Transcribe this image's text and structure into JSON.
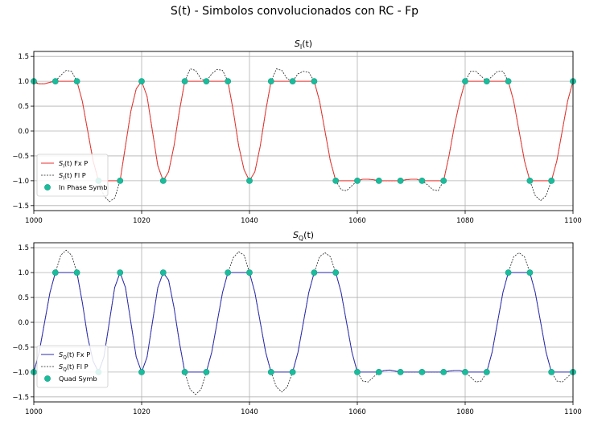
{
  "suptitle": "S(t) - Simbolos convolucionados con RC - Fp",
  "chart_data": [
    {
      "type": "line",
      "title": "S_I(t)",
      "title_main": "S",
      "title_sub": "I",
      "title_tail": "(t)",
      "xlim": [
        1000,
        1100
      ],
      "ylim": [
        -1.6,
        1.6
      ],
      "xticks": [
        1000,
        1020,
        1040,
        1060,
        1080,
        1100
      ],
      "yticks": [
        -1.5,
        -1.0,
        -0.5,
        0.0,
        0.5,
        1.0,
        1.5
      ],
      "ytick_labels": [
        "−1.5",
        "−1.0",
        "−0.5",
        "0.0",
        "0.5",
        "1.0",
        "1.5"
      ],
      "grid": true,
      "legend_position": "lower-left",
      "symbol_period": 4,
      "series": [
        {
          "name": "S_I(t) Fx P",
          "legend_main": "S",
          "legend_sub": "I",
          "legend_tail": "(t) Fx P",
          "color": "#e8322c",
          "style": "solid",
          "x": [
            1000,
            1001,
            1002,
            1003,
            1004,
            1005,
            1006,
            1007,
            1008,
            1009,
            1010,
            1011,
            1012,
            1013,
            1014,
            1015,
            1016,
            1017,
            1018,
            1019,
            1020,
            1021,
            1022,
            1023,
            1024,
            1025,
            1026,
            1027,
            1028,
            1029,
            1030,
            1031,
            1032,
            1033,
            1034,
            1035,
            1036,
            1037,
            1038,
            1039,
            1040,
            1041,
            1042,
            1043,
            1044,
            1045,
            1046,
            1047,
            1048,
            1049,
            1050,
            1051,
            1052,
            1053,
            1054,
            1055,
            1056,
            1057,
            1058,
            1059,
            1060,
            1061,
            1062,
            1063,
            1064,
            1065,
            1066,
            1067,
            1068,
            1069,
            1070,
            1071,
            1072,
            1073,
            1074,
            1075,
            1076,
            1077,
            1078,
            1079,
            1080,
            1081,
            1082,
            1083,
            1084,
            1085,
            1086,
            1087,
            1088,
            1089,
            1090,
            1091,
            1092,
            1093,
            1094,
            1095,
            1096,
            1097,
            1098,
            1099,
            1100
          ],
          "y": [
            0.97,
            0.95,
            0.95,
            0.98,
            1.0,
            1.0,
            1.0,
            1.0,
            1.0,
            0.6,
            0.0,
            -0.6,
            -1.0,
            -1.0,
            -1.0,
            -1.0,
            -1.0,
            -0.3,
            0.4,
            0.85,
            1.0,
            0.7,
            0.0,
            -0.7,
            -1.0,
            -0.82,
            -0.3,
            0.4,
            1.0,
            1.0,
            1.0,
            1.0,
            1.0,
            1.0,
            1.0,
            1.0,
            1.0,
            0.4,
            -0.3,
            -0.78,
            -1.0,
            -0.82,
            -0.3,
            0.4,
            1.0,
            1.0,
            1.0,
            1.0,
            1.0,
            1.0,
            1.0,
            1.0,
            1.0,
            0.6,
            0.0,
            -0.6,
            -1.0,
            -1.0,
            -1.0,
            -1.0,
            -1.0,
            -0.97,
            -0.97,
            -0.98,
            -1.0,
            -1.0,
            -1.0,
            -1.0,
            -1.0,
            -0.98,
            -0.97,
            -0.97,
            -1.0,
            -1.0,
            -1.0,
            -1.0,
            -1.0,
            -0.5,
            0.1,
            0.6,
            1.0,
            1.0,
            1.0,
            1.0,
            1.0,
            1.0,
            1.0,
            1.0,
            1.0,
            0.6,
            0.0,
            -0.6,
            -1.0,
            -1.0,
            -1.0,
            -1.0,
            -1.0,
            -0.6,
            0.0,
            0.6,
            1.0
          ]
        },
        {
          "name": "S_I(t) Fl P",
          "legend_main": "S",
          "legend_sub": "I",
          "legend_tail": "(t) Fl P",
          "color": "#222222",
          "style": "dotted",
          "x": [
            1000,
            1001,
            1002,
            1003,
            1004,
            1005,
            1006,
            1007,
            1008,
            1009,
            1010,
            1011,
            1012,
            1013,
            1014,
            1015,
            1016,
            1017,
            1018,
            1019,
            1020,
            1021,
            1022,
            1023,
            1024,
            1025,
            1026,
            1027,
            1028,
            1029,
            1030,
            1031,
            1032,
            1033,
            1034,
            1035,
            1036,
            1037,
            1038,
            1039,
            1040,
            1041,
            1042,
            1043,
            1044,
            1045,
            1046,
            1047,
            1048,
            1049,
            1050,
            1051,
            1052,
            1053,
            1054,
            1055,
            1056,
            1057,
            1058,
            1059,
            1060,
            1061,
            1062,
            1063,
            1064,
            1065,
            1066,
            1067,
            1068,
            1069,
            1070,
            1071,
            1072,
            1073,
            1074,
            1075,
            1076,
            1077,
            1078,
            1079,
            1080,
            1081,
            1082,
            1083,
            1084,
            1085,
            1086,
            1087,
            1088,
            1089,
            1090,
            1091,
            1092,
            1093,
            1094,
            1095,
            1096,
            1097,
            1098,
            1099,
            1100
          ],
          "y": [
            1.0,
            0.95,
            0.95,
            0.98,
            1.0,
            1.12,
            1.22,
            1.2,
            1.0,
            0.6,
            0.0,
            -0.6,
            -1.0,
            -1.3,
            -1.42,
            -1.35,
            -1.0,
            -0.3,
            0.4,
            0.85,
            1.0,
            0.7,
            0.0,
            -0.7,
            -1.0,
            -0.82,
            -0.3,
            0.4,
            1.0,
            1.25,
            1.22,
            1.05,
            1.0,
            1.15,
            1.24,
            1.22,
            1.0,
            0.4,
            -0.3,
            -0.78,
            -1.0,
            -0.82,
            -0.3,
            0.4,
            1.0,
            1.25,
            1.22,
            1.05,
            1.0,
            1.15,
            1.2,
            1.18,
            1.0,
            0.6,
            0.0,
            -0.6,
            -1.0,
            -1.18,
            -1.2,
            -1.1,
            -1.0,
            -0.97,
            -0.97,
            -0.98,
            -1.0,
            -1.0,
            -1.0,
            -1.0,
            -1.0,
            -0.98,
            -0.97,
            -0.97,
            -1.0,
            -1.08,
            -1.18,
            -1.2,
            -1.0,
            -0.5,
            0.1,
            0.6,
            1.0,
            1.2,
            1.2,
            1.1,
            1.0,
            1.1,
            1.2,
            1.2,
            1.0,
            0.6,
            0.0,
            -0.6,
            -1.0,
            -1.3,
            -1.4,
            -1.3,
            -1.0,
            -0.6,
            0.0,
            0.6,
            1.0
          ]
        }
      ],
      "symbols": {
        "name": "In Phase Symb",
        "color": "#1abc9c",
        "x": [
          1000,
          1004,
          1008,
          1012,
          1016,
          1020,
          1024,
          1028,
          1032,
          1036,
          1040,
          1044,
          1048,
          1052,
          1056,
          1060,
          1064,
          1068,
          1072,
          1076,
          1080,
          1084,
          1088,
          1092,
          1096,
          1100
        ],
        "y": [
          1,
          1,
          1,
          -1,
          -1,
          1,
          -1,
          1,
          1,
          1,
          -1,
          1,
          1,
          1,
          -1,
          -1,
          -1,
          -1,
          -1,
          -1,
          1,
          1,
          1,
          -1,
          -1,
          1
        ]
      }
    },
    {
      "type": "line",
      "title": "S_Q(t)",
      "title_main": "S",
      "title_sub": "Q",
      "title_tail": "(t)",
      "xlim": [
        1000,
        1100
      ],
      "ylim": [
        -1.6,
        1.6
      ],
      "xticks": [
        1000,
        1020,
        1040,
        1060,
        1080,
        1100
      ],
      "yticks": [
        -1.5,
        -1.0,
        -0.5,
        0.0,
        0.5,
        1.0,
        1.5
      ],
      "ytick_labels": [
        "−1.5",
        "−1.0",
        "−0.5",
        "0.0",
        "0.5",
        "1.0",
        "1.5"
      ],
      "grid": true,
      "legend_position": "lower-left",
      "symbol_period": 4,
      "series": [
        {
          "name": "S_Q(t) Fx P",
          "legend_main": "S",
          "legend_sub": "Q",
          "legend_tail": "(t) Fx P",
          "color": "#2b2bb0",
          "style": "solid",
          "x": [
            1000,
            1001,
            1002,
            1003,
            1004,
            1005,
            1006,
            1007,
            1008,
            1009,
            1010,
            1011,
            1012,
            1013,
            1014,
            1015,
            1016,
            1017,
            1018,
            1019,
            1020,
            1021,
            1022,
            1023,
            1024,
            1025,
            1026,
            1027,
            1028,
            1029,
            1030,
            1031,
            1032,
            1033,
            1034,
            1035,
            1036,
            1037,
            1038,
            1039,
            1040,
            1041,
            1042,
            1043,
            1044,
            1045,
            1046,
            1047,
            1048,
            1049,
            1050,
            1051,
            1052,
            1053,
            1054,
            1055,
            1056,
            1057,
            1058,
            1059,
            1060,
            1061,
            1062,
            1063,
            1064,
            1065,
            1066,
            1067,
            1068,
            1069,
            1070,
            1071,
            1072,
            1073,
            1074,
            1075,
            1076,
            1077,
            1078,
            1079,
            1080,
            1081,
            1082,
            1083,
            1084,
            1085,
            1086,
            1087,
            1088,
            1089,
            1090,
            1091,
            1092,
            1093,
            1094,
            1095,
            1096,
            1097,
            1098,
            1099,
            1100
          ],
          "y": [
            -1.0,
            -0.6,
            0.0,
            0.6,
            1.0,
            1.0,
            1.0,
            1.0,
            1.0,
            0.4,
            -0.3,
            -0.78,
            -1.0,
            -0.7,
            0.0,
            0.7,
            1.0,
            0.7,
            0.0,
            -0.7,
            -1.0,
            -0.7,
            0.0,
            0.7,
            1.0,
            0.85,
            0.3,
            -0.4,
            -1.0,
            -1.0,
            -1.0,
            -1.0,
            -1.0,
            -0.6,
            0.0,
            0.6,
            1.0,
            1.0,
            1.0,
            1.0,
            1.0,
            0.6,
            0.0,
            -0.6,
            -1.0,
            -1.0,
            -1.0,
            -1.0,
            -1.0,
            -0.6,
            0.0,
            0.6,
            1.0,
            1.0,
            1.0,
            1.0,
            1.0,
            0.6,
            0.0,
            -0.6,
            -1.0,
            -1.0,
            -1.0,
            -1.0,
            -1.0,
            -0.97,
            -0.96,
            -0.98,
            -1.0,
            -1.0,
            -1.0,
            -1.0,
            -1.0,
            -1.0,
            -1.0,
            -1.0,
            -1.0,
            -0.98,
            -0.97,
            -0.97,
            -1.0,
            -1.0,
            -1.0,
            -1.0,
            -1.0,
            -0.6,
            0.0,
            0.6,
            1.0,
            1.0,
            1.0,
            1.0,
            1.0,
            0.6,
            0.0,
            -0.6,
            -1.0,
            -1.0,
            -1.0,
            -1.0,
            -1.0
          ]
        },
        {
          "name": "S_Q(t) Fl P",
          "legend_main": "S",
          "legend_sub": "Q",
          "legend_tail": "(t) Fl P",
          "color": "#222222",
          "style": "dotted",
          "x": [
            1000,
            1001,
            1002,
            1003,
            1004,
            1005,
            1006,
            1007,
            1008,
            1009,
            1010,
            1011,
            1012,
            1013,
            1014,
            1015,
            1016,
            1017,
            1018,
            1019,
            1020,
            1021,
            1022,
            1023,
            1024,
            1025,
            1026,
            1027,
            1028,
            1029,
            1030,
            1031,
            1032,
            1033,
            1034,
            1035,
            1036,
            1037,
            1038,
            1039,
            1040,
            1041,
            1042,
            1043,
            1044,
            1045,
            1046,
            1047,
            1048,
            1049,
            1050,
            1051,
            1052,
            1053,
            1054,
            1055,
            1056,
            1057,
            1058,
            1059,
            1060,
            1061,
            1062,
            1063,
            1064,
            1065,
            1066,
            1067,
            1068,
            1069,
            1070,
            1071,
            1072,
            1073,
            1074,
            1075,
            1076,
            1077,
            1078,
            1079,
            1080,
            1081,
            1082,
            1083,
            1084,
            1085,
            1086,
            1087,
            1088,
            1089,
            1090,
            1091,
            1092,
            1093,
            1094,
            1095,
            1096,
            1097,
            1098,
            1099,
            1100
          ],
          "y": [
            -1.0,
            -0.6,
            0.0,
            0.6,
            1.0,
            1.35,
            1.45,
            1.35,
            1.0,
            0.4,
            -0.3,
            -0.78,
            -1.0,
            -0.7,
            0.0,
            0.7,
            1.0,
            0.7,
            0.0,
            -0.7,
            -1.0,
            -0.7,
            0.0,
            0.7,
            1.0,
            0.85,
            0.3,
            -0.4,
            -1.0,
            -1.35,
            -1.45,
            -1.35,
            -1.0,
            -0.6,
            0.0,
            0.6,
            1.0,
            1.3,
            1.42,
            1.35,
            1.0,
            0.6,
            0.0,
            -0.6,
            -1.0,
            -1.3,
            -1.4,
            -1.3,
            -1.0,
            -0.6,
            0.0,
            0.6,
            1.0,
            1.32,
            1.4,
            1.32,
            1.0,
            0.6,
            0.0,
            -0.6,
            -1.0,
            -1.18,
            -1.2,
            -1.1,
            -1.0,
            -0.97,
            -0.96,
            -0.98,
            -1.0,
            -1.0,
            -1.0,
            -1.0,
            -1.0,
            -1.0,
            -1.0,
            -1.0,
            -1.0,
            -0.98,
            -0.97,
            -0.97,
            -1.0,
            -1.1,
            -1.2,
            -1.18,
            -1.0,
            -0.6,
            0.0,
            0.6,
            1.0,
            1.32,
            1.4,
            1.32,
            1.0,
            0.6,
            0.0,
            -0.6,
            -1.0,
            -1.18,
            -1.2,
            -1.1,
            -1.0
          ]
        }
      ],
      "symbols": {
        "name": "Quad Symb",
        "color": "#1abc9c",
        "x": [
          1000,
          1004,
          1008,
          1012,
          1016,
          1020,
          1024,
          1028,
          1032,
          1036,
          1040,
          1044,
          1048,
          1052,
          1056,
          1060,
          1064,
          1068,
          1072,
          1076,
          1080,
          1084,
          1088,
          1092,
          1096,
          1100
        ],
        "y": [
          -1,
          1,
          1,
          -1,
          1,
          -1,
          1,
          -1,
          -1,
          1,
          1,
          -1,
          -1,
          1,
          1,
          -1,
          -1,
          -1,
          -1,
          -1,
          -1,
          -1,
          1,
          1,
          -1,
          -1
        ]
      }
    }
  ]
}
